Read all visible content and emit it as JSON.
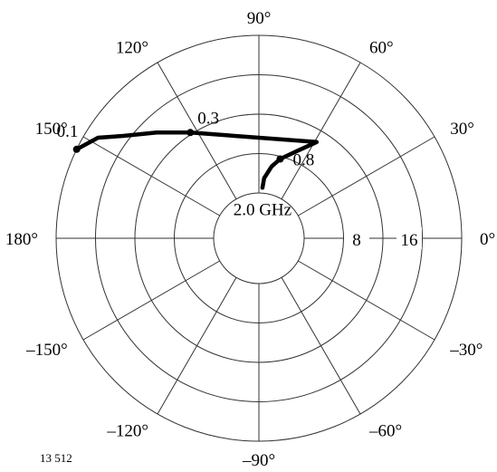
{
  "figure_id": "13 512",
  "chart_data": {
    "type": "line",
    "coordinate_system": "polar",
    "radial_ticks": [
      {
        "value": 0,
        "label": ""
      },
      {
        "value": 8,
        "label": "8"
      },
      {
        "value": 16,
        "label": "16"
      }
    ],
    "radial_range": [
      0,
      24
    ],
    "angle_ticks": [
      {
        "deg": 0,
        "label": "0°"
      },
      {
        "deg": 30,
        "label": "30°"
      },
      {
        "deg": 60,
        "label": "60°"
      },
      {
        "deg": 90,
        "label": "90°"
      },
      {
        "deg": 120,
        "label": "120°"
      },
      {
        "deg": 150,
        "label": "150°"
      },
      {
        "deg": 180,
        "label": "180°"
      },
      {
        "deg": -150,
        "label": "–150°"
      },
      {
        "deg": -120,
        "label": "–120°"
      },
      {
        "deg": -90,
        "label": "–90°"
      },
      {
        "deg": -60,
        "label": "–60°"
      },
      {
        "deg": -30,
        "label": "–30°"
      }
    ],
    "grid": true,
    "series": [
      {
        "points": [
          {
            "r": 0.8,
            "deg": 86
          },
          {
            "r": 2.3,
            "deg": 85
          },
          {
            "r": 4.2,
            "deg": 80
          },
          {
            "r": 5.6,
            "deg": 75
          },
          {
            "r": 7.7,
            "deg": 66
          },
          {
            "r": 10.2,
            "deg": 59
          },
          {
            "r": 12.3,
            "deg": 123
          },
          {
            "r": 15.5,
            "deg": 134
          },
          {
            "r": 19.0,
            "deg": 143
          },
          {
            "r": 22.0,
            "deg": 148
          },
          {
            "r": 24.0,
            "deg": 154
          }
        ]
      }
    ],
    "annotations": [
      {
        "label": "0.1",
        "r": 24.0,
        "deg": 154
      },
      {
        "label": "0.3",
        "r": 12.3,
        "deg": 123
      },
      {
        "label": "0.8",
        "r": 5.6,
        "deg": 75
      },
      {
        "label": "2.0 GHz",
        "r": 0.8,
        "deg": 86
      }
    ]
  }
}
